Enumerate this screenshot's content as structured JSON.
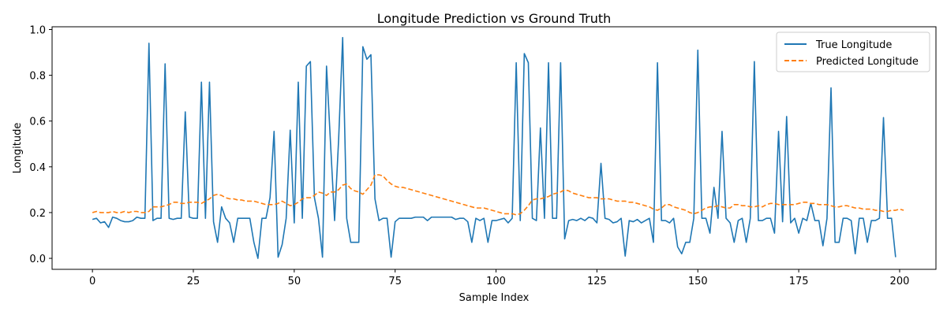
{
  "chart_data": {
    "type": "line",
    "title": "Longitude Prediction vs Ground Truth",
    "xlabel": "Sample Index",
    "ylabel": "Longitude",
    "xlim": [
      -10,
      209
    ],
    "ylim": [
      -0.048,
      1.012
    ],
    "xticks": [
      0,
      25,
      50,
      75,
      100,
      125,
      150,
      175,
      200
    ],
    "yticks": [
      0.0,
      0.2,
      0.4,
      0.6,
      0.8,
      1.0
    ],
    "xtick_labels": [
      "0",
      "25",
      "50",
      "75",
      "100",
      "125",
      "150",
      "175",
      "200"
    ],
    "ytick_labels": [
      "0.0",
      "0.2",
      "0.4",
      "0.6",
      "0.8",
      "1.0"
    ],
    "grid": false,
    "legend_position": "top-right",
    "series": [
      {
        "name": "True Longitude",
        "color": "#1f77b4",
        "style": "solid",
        "values": [
          0.17,
          0.175,
          0.155,
          0.16,
          0.135,
          0.18,
          0.175,
          0.165,
          0.16,
          0.16,
          0.165,
          0.18,
          0.175,
          0.175,
          0.94,
          0.165,
          0.175,
          0.175,
          0.85,
          0.175,
          0.17,
          0.175,
          0.175,
          0.64,
          0.18,
          0.175,
          0.175,
          0.77,
          0.175,
          0.77,
          0.16,
          0.07,
          0.225,
          0.175,
          0.155,
          0.07,
          0.175,
          0.175,
          0.175,
          0.175,
          0.07,
          0.0,
          0.175,
          0.175,
          0.265,
          0.555,
          0.005,
          0.06,
          0.175,
          0.56,
          0.155,
          0.77,
          0.175,
          0.84,
          0.86,
          0.265,
          0.175,
          0.005,
          0.84,
          0.5,
          0.165,
          0.52,
          0.965,
          0.175,
          0.07,
          0.07,
          0.07,
          0.925,
          0.87,
          0.89,
          0.26,
          0.165,
          0.175,
          0.175,
          0.005,
          0.16,
          0.175,
          0.175,
          0.175,
          0.175,
          0.18,
          0.18,
          0.18,
          0.165,
          0.18,
          0.18,
          0.18,
          0.18,
          0.18,
          0.18,
          0.17,
          0.175,
          0.175,
          0.16,
          0.07,
          0.175,
          0.165,
          0.175,
          0.07,
          0.165,
          0.165,
          0.17,
          0.175,
          0.155,
          0.175,
          0.855,
          0.165,
          0.895,
          0.855,
          0.175,
          0.165,
          0.57,
          0.175,
          0.855,
          0.175,
          0.175,
          0.855,
          0.085,
          0.165,
          0.17,
          0.165,
          0.175,
          0.165,
          0.18,
          0.175,
          0.155,
          0.415,
          0.175,
          0.17,
          0.155,
          0.16,
          0.175,
          0.01,
          0.165,
          0.16,
          0.17,
          0.155,
          0.165,
          0.175,
          0.07,
          0.855,
          0.165,
          0.165,
          0.155,
          0.175,
          0.05,
          0.02,
          0.07,
          0.07,
          0.175,
          0.91,
          0.175,
          0.175,
          0.11,
          0.31,
          0.175,
          0.555,
          0.175,
          0.155,
          0.07,
          0.165,
          0.175,
          0.07,
          0.175,
          0.86,
          0.165,
          0.165,
          0.175,
          0.175,
          0.11,
          0.555,
          0.16,
          0.62,
          0.155,
          0.175,
          0.11,
          0.175,
          0.165,
          0.24,
          0.165,
          0.165,
          0.055,
          0.175,
          0.745,
          0.07,
          0.07,
          0.175,
          0.175,
          0.165,
          0.02,
          0.175,
          0.175,
          0.07,
          0.165,
          0.165,
          0.175,
          0.615,
          0.175,
          0.175,
          0.005
        ]
      },
      {
        "name": "Predicted Longitude",
        "color": "#ff7f0e",
        "style": "dashed",
        "values": [
          0.2,
          0.205,
          0.2,
          0.2,
          0.2,
          0.205,
          0.2,
          0.2,
          0.205,
          0.2,
          0.205,
          0.205,
          0.2,
          0.2,
          0.205,
          0.225,
          0.225,
          0.225,
          0.23,
          0.235,
          0.245,
          0.245,
          0.24,
          0.24,
          0.245,
          0.245,
          0.245,
          0.24,
          0.25,
          0.26,
          0.275,
          0.28,
          0.275,
          0.265,
          0.26,
          0.26,
          0.255,
          0.255,
          0.25,
          0.25,
          0.25,
          0.245,
          0.24,
          0.235,
          0.235,
          0.235,
          0.24,
          0.25,
          0.24,
          0.23,
          0.235,
          0.245,
          0.26,
          0.265,
          0.265,
          0.275,
          0.29,
          0.285,
          0.275,
          0.29,
          0.29,
          0.3,
          0.32,
          0.325,
          0.305,
          0.295,
          0.29,
          0.28,
          0.3,
          0.32,
          0.365,
          0.365,
          0.36,
          0.34,
          0.325,
          0.315,
          0.31,
          0.31,
          0.305,
          0.3,
          0.295,
          0.29,
          0.285,
          0.28,
          0.275,
          0.27,
          0.265,
          0.26,
          0.255,
          0.25,
          0.245,
          0.24,
          0.235,
          0.23,
          0.225,
          0.22,
          0.22,
          0.22,
          0.215,
          0.21,
          0.205,
          0.2,
          0.195,
          0.195,
          0.195,
          0.19,
          0.195,
          0.21,
          0.23,
          0.255,
          0.26,
          0.26,
          0.265,
          0.27,
          0.28,
          0.285,
          0.29,
          0.3,
          0.295,
          0.285,
          0.28,
          0.275,
          0.27,
          0.265,
          0.265,
          0.265,
          0.26,
          0.26,
          0.26,
          0.255,
          0.25,
          0.25,
          0.25,
          0.245,
          0.245,
          0.24,
          0.235,
          0.23,
          0.225,
          0.215,
          0.21,
          0.22,
          0.235,
          0.235,
          0.225,
          0.22,
          0.215,
          0.21,
          0.2,
          0.195,
          0.2,
          0.21,
          0.22,
          0.225,
          0.225,
          0.23,
          0.225,
          0.22,
          0.22,
          0.235,
          0.235,
          0.23,
          0.23,
          0.225,
          0.225,
          0.23,
          0.225,
          0.235,
          0.24,
          0.24,
          0.235,
          0.235,
          0.235,
          0.235,
          0.235,
          0.24,
          0.245,
          0.245,
          0.24,
          0.24,
          0.235,
          0.235,
          0.235,
          0.23,
          0.225,
          0.225,
          0.23,
          0.23,
          0.225,
          0.22,
          0.22,
          0.215,
          0.215,
          0.215,
          0.21,
          0.21,
          0.205,
          0.205,
          0.21,
          0.21,
          0.215,
          0.21
        ]
      }
    ]
  }
}
